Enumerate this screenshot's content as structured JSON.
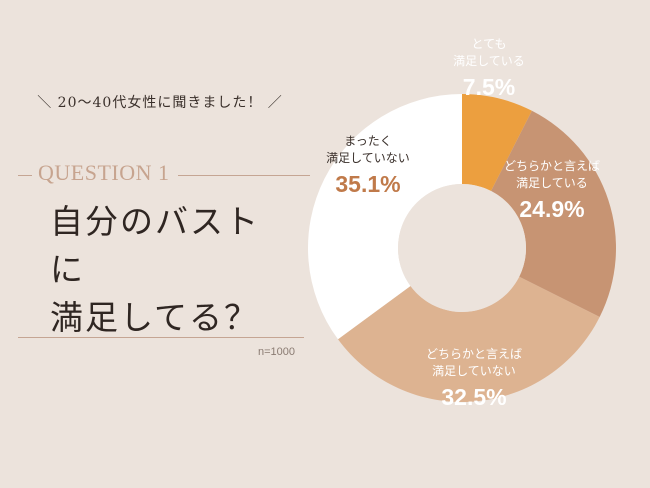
{
  "survey_note": "＼ 20〜40代女性に聞きました！ ／",
  "question": {
    "label": "QUESTION 1",
    "title_line1": "自分のバストに",
    "title_line2": "満足してる？"
  },
  "sample_size": "n=1000",
  "chart_data": {
    "type": "pie",
    "title": "自分のバストに満足してる？",
    "slices": [
      {
        "label_line1": "とても",
        "label_line2": "満足している",
        "value": 7.5,
        "pct_text": "7.5%",
        "color": "#ec9f3f",
        "text_color": "#ffffff"
      },
      {
        "label_line1": "どちらかと言えば",
        "label_line2": "満足している",
        "value": 24.9,
        "pct_text": "24.9%",
        "color": "#c79473",
        "text_color": "#ffffff"
      },
      {
        "label_line1": "どちらかと言えば",
        "label_line2": "満足していない",
        "value": 32.5,
        "pct_text": "32.5%",
        "color": "#ddb391",
        "text_color": "#ffffff"
      },
      {
        "label_line1": "まったく",
        "label_line2": "満足していない",
        "value": 35.1,
        "pct_text": "35.1%",
        "color": "#ffffff",
        "text_color": "#c07a4a",
        "label_color": "#3a302b"
      }
    ]
  }
}
